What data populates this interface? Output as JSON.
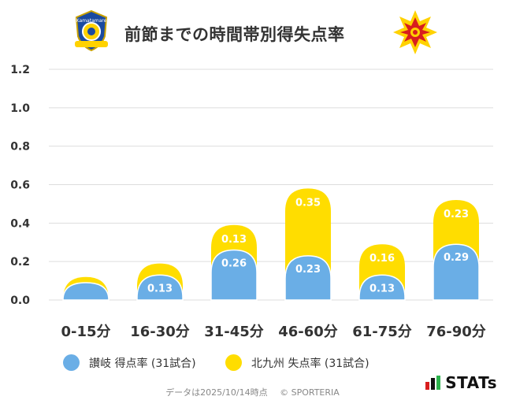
{
  "header": {
    "title": "前節までの時間帯別得失点率",
    "left_logo_icon": "team-crest-sanuki",
    "right_logo_icon": "team-crest-kitakyushu"
  },
  "colors": {
    "series_a": "#6aaee6",
    "series_b": "#ffdd00",
    "grid": "#dddddd",
    "axis_text": "#333333"
  },
  "chart_data": {
    "type": "bar",
    "stacked": true,
    "categories": [
      "0-15分",
      "16-30分",
      "31-45分",
      "46-60分",
      "61-75分",
      "76-90分"
    ],
    "series": [
      {
        "name": "讃岐 得点率 (31試合)",
        "values": [
          0.09,
          0.13,
          0.26,
          0.23,
          0.13,
          0.29
        ],
        "labels": [
          "",
          "0.13",
          "0.26",
          "0.23",
          "0.13",
          "0.29"
        ]
      },
      {
        "name": "北九州 失点率 (31試合)",
        "values": [
          0.03,
          0.06,
          0.13,
          0.35,
          0.16,
          0.23
        ],
        "labels": [
          "",
          "",
          "0.13",
          "0.35",
          "0.16",
          "0.23"
        ]
      }
    ],
    "yticks": [
      "0.0",
      "0.2",
      "0.4",
      "0.6",
      "0.8",
      "1.0",
      "1.2"
    ],
    "ylim": [
      0,
      1.2
    ],
    "grid": true,
    "legend_position": "bottom"
  },
  "legend": {
    "item_a": "讃岐 得点率 (31試合)",
    "item_b": "北九州 失点率 (31試合)"
  },
  "footer": {
    "data_date": "データは2025/10/14時点",
    "copyright": "© SPORTERIA"
  },
  "brand": {
    "name": "STATs"
  }
}
